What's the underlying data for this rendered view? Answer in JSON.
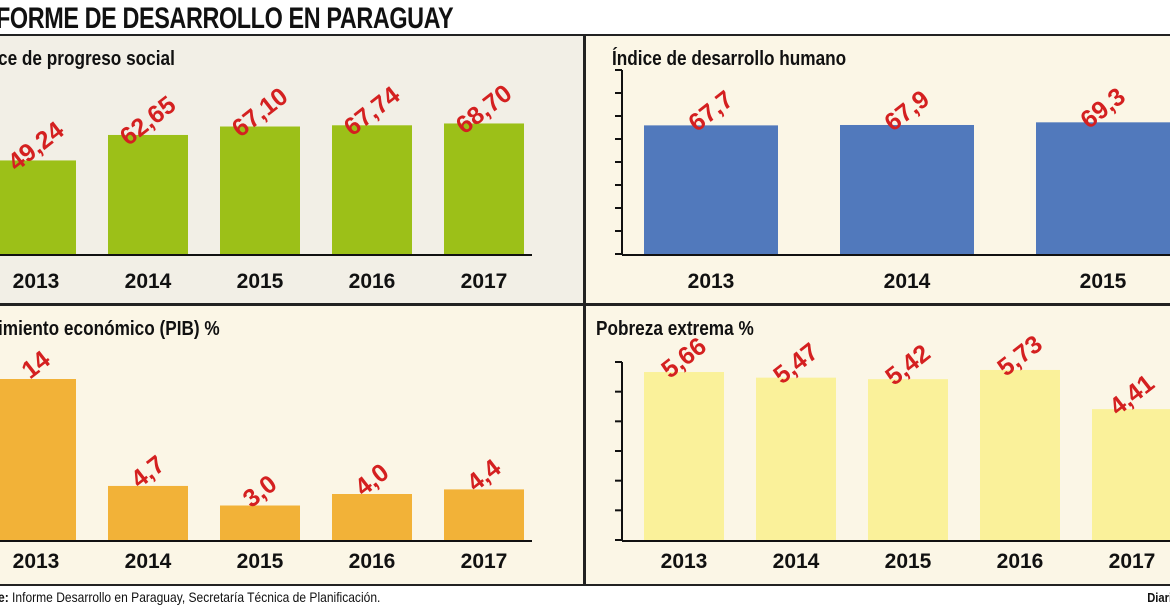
{
  "header": {
    "title": "FORME DE DESARROLLO EN PARAGUAY"
  },
  "footer": {
    "source_label": "e:",
    "source_text": " Informe Desarrollo en Paraguay,  Secretaría Técnica de Planificación.",
    "credit": "Diario Últim"
  },
  "chart_data": [
    {
      "type": "bar",
      "title": "ce de progreso social",
      "categories": [
        "2013",
        "2014",
        "2015",
        "2016",
        "2017"
      ],
      "values": [
        49.24,
        62.65,
        67.1,
        67.74,
        68.7
      ],
      "value_labels": [
        "49,24",
        "62,65",
        "67,10",
        "67,74",
        "68,70"
      ],
      "color": "#9cc018",
      "label_color": "#d42020",
      "ylim": [
        0,
        100
      ]
    },
    {
      "type": "bar",
      "title": "Índice de desarrollo humano",
      "categories": [
        "2013",
        "2014",
        "2015"
      ],
      "values": [
        67.7,
        67.9,
        69.3
      ],
      "value_labels": [
        "67,7",
        "67,9",
        "69,3"
      ],
      "color": "#5179bc",
      "label_color": "#d42020",
      "ylim": [
        0,
        100
      ],
      "axis_ticks": 8
    },
    {
      "type": "bar",
      "title": "imiento económico  (PIB) %",
      "categories": [
        "2013",
        "2014",
        "2015",
        "2016",
        "2017"
      ],
      "values": [
        14,
        4.7,
        3.0,
        4.0,
        4.4
      ],
      "value_labels": [
        "14",
        "4,7",
        "3,0",
        "4,0",
        "4,4"
      ],
      "color": "#f2b238",
      "label_color": "#d42020",
      "ylim": [
        0,
        16
      ]
    },
    {
      "type": "bar",
      "title": "Pobreza extrema %",
      "categories": [
        "2013",
        "2014",
        "2015",
        "2016",
        "2017"
      ],
      "values": [
        5.66,
        5.47,
        5.42,
        5.73,
        4.41
      ],
      "value_labels": [
        "5,66",
        "5,47",
        "5,42",
        "5,73",
        "4,41"
      ],
      "color": "#faf19a",
      "label_color": "#d42020",
      "ylim": [
        0,
        6.2
      ],
      "axis_ticks": 6
    }
  ]
}
